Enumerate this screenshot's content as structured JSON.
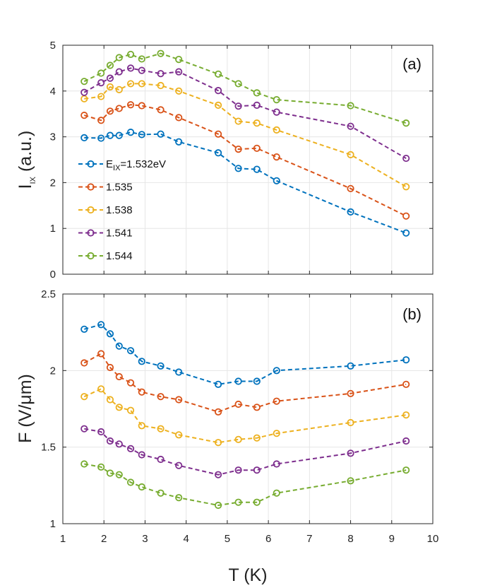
{
  "chart_data": [
    {
      "type": "line",
      "panel_label": "(a)",
      "xlabel": "T (K)",
      "ylabel": {
        "main": "I",
        "sub": "IX",
        "unit": " (a.u.)"
      },
      "xlim": [
        1,
        10
      ],
      "ylim": [
        0,
        5
      ],
      "xticks": [
        1,
        2,
        3,
        4,
        5,
        6,
        7,
        8,
        9,
        10
      ],
      "yticks": [
        0,
        1,
        2,
        3,
        4,
        5
      ],
      "grid": true,
      "legend_position": "left-center",
      "x": [
        1.52,
        1.93,
        2.15,
        2.37,
        2.65,
        2.92,
        3.38,
        3.82,
        4.78,
        5.27,
        5.72,
        6.2,
        8.0,
        9.35
      ],
      "series": [
        {
          "name": "E_IX=1.532eV",
          "legend": {
            "main": "E",
            "sub": "IX",
            "rest": "=1.532eV"
          },
          "color": "#0072BD",
          "values": [
            2.98,
            2.97,
            3.03,
            3.03,
            3.1,
            3.05,
            3.06,
            2.89,
            2.65,
            2.31,
            2.29,
            2.04,
            1.36,
            0.9
          ]
        },
        {
          "name": "1.535",
          "legend": {
            "main": "1.535"
          },
          "color": "#D95319",
          "values": [
            3.47,
            3.36,
            3.56,
            3.62,
            3.7,
            3.68,
            3.59,
            3.42,
            3.06,
            2.73,
            2.75,
            2.56,
            1.87,
            1.27
          ]
        },
        {
          "name": "1.538",
          "legend": {
            "main": "1.538"
          },
          "color": "#EDB120",
          "values": [
            3.83,
            3.88,
            4.09,
            4.03,
            4.16,
            4.16,
            4.12,
            4.0,
            3.69,
            3.34,
            3.3,
            3.15,
            2.61,
            1.91
          ]
        },
        {
          "name": "1.541",
          "legend": {
            "main": "1.541"
          },
          "color": "#7E2F8E",
          "values": [
            3.97,
            4.18,
            4.28,
            4.42,
            4.5,
            4.45,
            4.38,
            4.42,
            4.01,
            3.67,
            3.69,
            3.54,
            3.23,
            2.53
          ]
        },
        {
          "name": "1.544",
          "legend": {
            "main": "1.544"
          },
          "color": "#77AC30",
          "values": [
            4.21,
            4.39,
            4.56,
            4.73,
            4.8,
            4.7,
            4.82,
            4.69,
            4.37,
            4.16,
            3.96,
            3.81,
            3.68,
            3.3
          ]
        }
      ]
    },
    {
      "type": "line",
      "panel_label": "(b)",
      "xlabel": "T (K)",
      "ylabel": {
        "main": "F (V/μm)"
      },
      "xlim": [
        1,
        10
      ],
      "ylim": [
        1,
        2.5
      ],
      "xticks": [
        1,
        2,
        3,
        4,
        5,
        6,
        7,
        8,
        9,
        10
      ],
      "yticks": [
        1,
        1.5,
        2,
        2.5
      ],
      "grid": true,
      "x": [
        1.52,
        1.93,
        2.15,
        2.37,
        2.65,
        2.92,
        3.38,
        3.82,
        4.78,
        5.27,
        5.72,
        6.2,
        8.0,
        9.35
      ],
      "series": [
        {
          "name": "E_IX=1.532eV",
          "color": "#0072BD",
          "values": [
            2.27,
            2.3,
            2.24,
            2.16,
            2.13,
            2.06,
            2.03,
            1.99,
            1.91,
            1.93,
            1.93,
            2.0,
            2.03,
            2.07
          ]
        },
        {
          "name": "1.535",
          "color": "#D95319",
          "values": [
            2.05,
            2.11,
            2.02,
            1.96,
            1.92,
            1.86,
            1.83,
            1.81,
            1.73,
            1.78,
            1.76,
            1.8,
            1.85,
            1.91
          ]
        },
        {
          "name": "1.538",
          "color": "#EDB120",
          "values": [
            1.83,
            1.88,
            1.81,
            1.76,
            1.74,
            1.64,
            1.62,
            1.58,
            1.53,
            1.55,
            1.56,
            1.59,
            1.66,
            1.71
          ]
        },
        {
          "name": "1.541",
          "color": "#7E2F8E",
          "values": [
            1.62,
            1.6,
            1.54,
            1.52,
            1.49,
            1.45,
            1.42,
            1.38,
            1.32,
            1.35,
            1.35,
            1.39,
            1.46,
            1.54
          ]
        },
        {
          "name": "1.544",
          "color": "#77AC30",
          "values": [
            1.39,
            1.37,
            1.33,
            1.32,
            1.27,
            1.24,
            1.2,
            1.17,
            1.12,
            1.14,
            1.14,
            1.2,
            1.28,
            1.35
          ]
        }
      ]
    }
  ]
}
